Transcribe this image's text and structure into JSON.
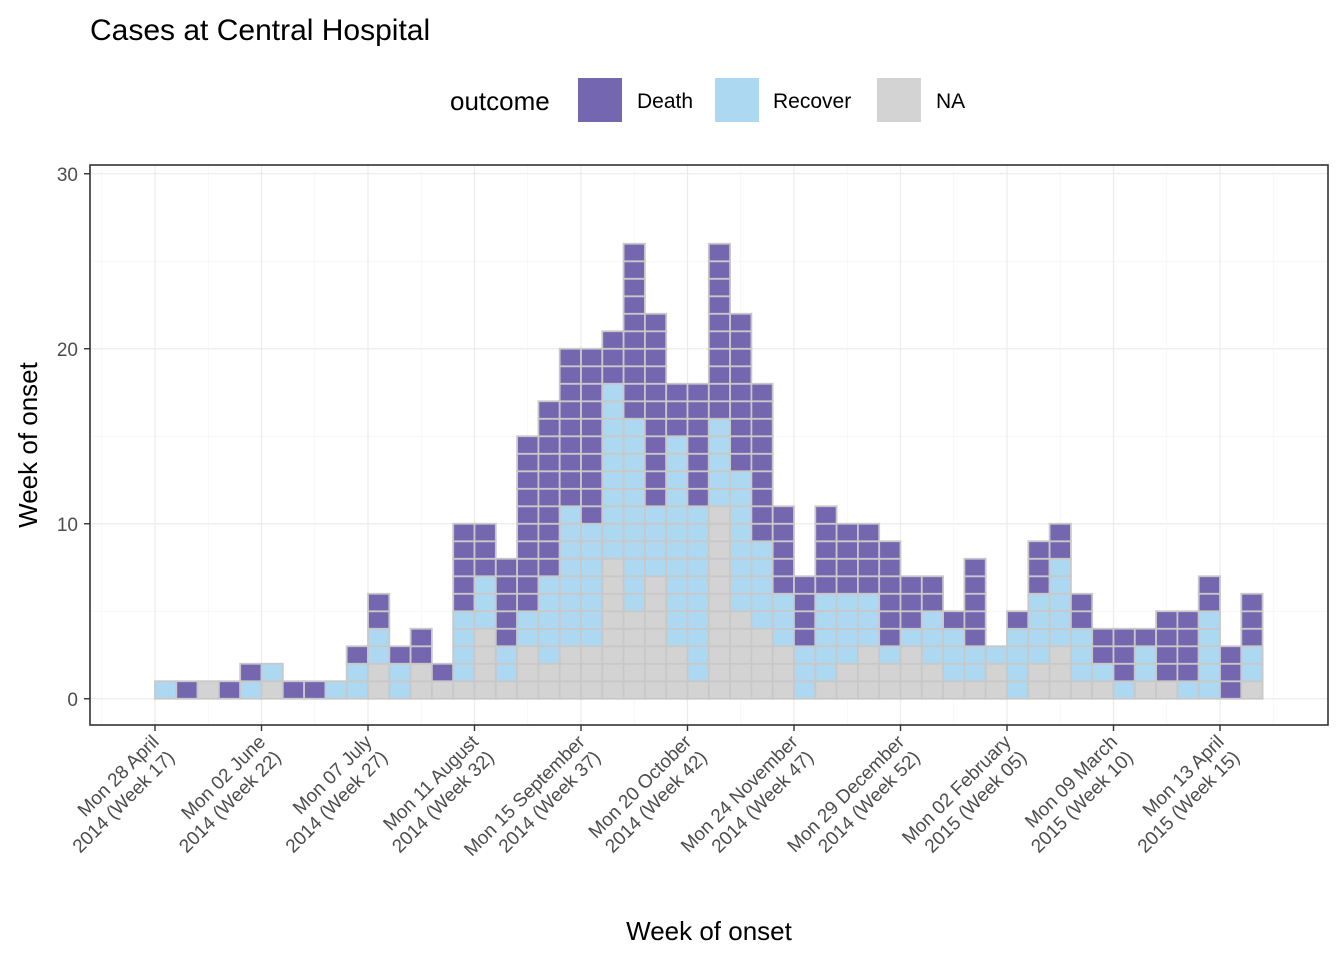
{
  "chart_data": {
    "type": "bar",
    "title": "Cases at Central Hospital",
    "xlabel": "Week of onset",
    "ylabel": "Week of onset",
    "ylim": [
      -1.5,
      30.5
    ],
    "yticks": [
      0,
      10,
      20,
      30
    ],
    "grid": true,
    "legend": {
      "title": "outcome",
      "position": "top"
    },
    "colors": {
      "Death": "#7566b0",
      "Recover": "#add8f2",
      "NA": "#d3d3d3",
      "cell_border": "#c8c8c8"
    },
    "x_axis": {
      "unit": "ISO week (Monday start)",
      "first_week": "2014-04-28",
      "ticks": [
        {
          "week": "2014-04-28",
          "line1": "Mon 28 April",
          "line2": "2014 (Week 17)"
        },
        {
          "week": "2014-06-02",
          "line1": "Mon 02 June",
          "line2": "2014 (Week 22)"
        },
        {
          "week": "2014-07-07",
          "line1": "Mon 07 July",
          "line2": "2014 (Week 27)"
        },
        {
          "week": "2014-08-11",
          "line1": "Mon 11 August",
          "line2": "2014 (Week 32)"
        },
        {
          "week": "2014-09-15",
          "line1": "Mon 15 September",
          "line2": "2014 (Week 37)"
        },
        {
          "week": "2014-10-20",
          "line1": "Mon 20 October",
          "line2": "2014 (Week 42)"
        },
        {
          "week": "2014-11-24",
          "line1": "Mon 24 November",
          "line2": "2014 (Week 47)"
        },
        {
          "week": "2014-12-29",
          "line1": "Mon 29 December",
          "line2": "2014 (Week 52)"
        },
        {
          "week": "2015-02-02",
          "line1": "Mon 02 February",
          "line2": "2015 (Week 05)"
        },
        {
          "week": "2015-03-09",
          "line1": "Mon 09 March",
          "line2": "2015 (Week 10)"
        },
        {
          "week": "2015-04-13",
          "line1": "Mon 13 April",
          "line2": "2015 (Week 15)"
        }
      ]
    },
    "stack_order": [
      "NA",
      "Recover",
      "Death"
    ],
    "series": [
      {
        "name": "NA",
        "x": [
          "2014-04-28",
          "2014-05-05",
          "2014-05-12",
          "2014-05-19",
          "2014-05-26",
          "2014-06-02",
          "2014-06-09",
          "2014-06-16",
          "2014-06-23",
          "2014-06-30",
          "2014-07-07",
          "2014-07-14",
          "2014-07-21",
          "2014-07-28",
          "2014-08-04",
          "2014-08-11",
          "2014-08-18",
          "2014-08-25",
          "2014-09-01",
          "2014-09-08",
          "2014-09-15",
          "2014-09-22",
          "2014-09-29",
          "2014-10-06",
          "2014-10-13",
          "2014-10-20",
          "2014-10-27",
          "2014-11-03",
          "2014-11-10",
          "2014-11-17",
          "2014-11-24",
          "2014-12-01",
          "2014-12-08",
          "2014-12-15",
          "2014-12-22",
          "2014-12-29",
          "2015-01-05",
          "2015-01-12",
          "2015-01-19",
          "2015-01-26",
          "2015-02-02",
          "2015-02-09",
          "2015-02-16",
          "2015-02-23",
          "2015-03-02",
          "2015-03-09",
          "2015-03-16",
          "2015-03-23",
          "2015-03-30",
          "2015-04-06",
          "2015-04-13",
          "2015-04-20"
        ],
        "values": [
          0,
          0,
          1,
          0,
          0,
          1,
          0,
          0,
          0,
          0,
          2,
          0,
          2,
          1,
          1,
          4,
          1,
          3,
          2,
          3,
          3,
          8,
          5,
          7,
          3,
          1,
          11,
          5,
          4,
          3,
          0,
          1,
          2,
          3,
          2,
          3,
          2,
          1,
          1,
          2,
          0,
          2,
          3,
          1,
          1,
          0,
          1,
          1,
          0,
          0,
          0,
          1
        ]
      },
      {
        "name": "Recover",
        "x": [
          "2014-04-28",
          "2014-05-05",
          "2014-05-12",
          "2014-05-19",
          "2014-05-26",
          "2014-06-02",
          "2014-06-09",
          "2014-06-16",
          "2014-06-23",
          "2014-06-30",
          "2014-07-07",
          "2014-07-14",
          "2014-07-21",
          "2014-07-28",
          "2014-08-04",
          "2014-08-11",
          "2014-08-18",
          "2014-08-25",
          "2014-09-01",
          "2014-09-08",
          "2014-09-15",
          "2014-09-22",
          "2014-09-29",
          "2014-10-06",
          "2014-10-13",
          "2014-10-20",
          "2014-10-27",
          "2014-11-03",
          "2014-11-10",
          "2014-11-17",
          "2014-11-24",
          "2014-12-01",
          "2014-12-08",
          "2014-12-15",
          "2014-12-22",
          "2014-12-29",
          "2015-01-05",
          "2015-01-12",
          "2015-01-19",
          "2015-01-26",
          "2015-02-02",
          "2015-02-09",
          "2015-02-16",
          "2015-02-23",
          "2015-03-02",
          "2015-03-09",
          "2015-03-16",
          "2015-03-23",
          "2015-03-30",
          "2015-04-06",
          "2015-04-13",
          "2015-04-20"
        ],
        "values": [
          1,
          0,
          0,
          0,
          1,
          1,
          0,
          0,
          1,
          2,
          2,
          2,
          0,
          0,
          4,
          3,
          2,
          2,
          5,
          8,
          7,
          10,
          11,
          4,
          12,
          10,
          5,
          8,
          5,
          3,
          3,
          5,
          4,
          3,
          1,
          1,
          3,
          3,
          2,
          1,
          4,
          4,
          5,
          3,
          1,
          1,
          2,
          0,
          1,
          5,
          0,
          2
        ]
      },
      {
        "name": "Death",
        "x": [
          "2014-04-28",
          "2014-05-05",
          "2014-05-12",
          "2014-05-19",
          "2014-05-26",
          "2014-06-02",
          "2014-06-09",
          "2014-06-16",
          "2014-06-23",
          "2014-06-30",
          "2014-07-07",
          "2014-07-14",
          "2014-07-21",
          "2014-07-28",
          "2014-08-04",
          "2014-08-11",
          "2014-08-18",
          "2014-08-25",
          "2014-09-01",
          "2014-09-08",
          "2014-09-15",
          "2014-09-22",
          "2014-09-29",
          "2014-10-06",
          "2014-10-13",
          "2014-10-20",
          "2014-10-27",
          "2014-11-03",
          "2014-11-10",
          "2014-11-17",
          "2014-11-24",
          "2014-12-01",
          "2014-12-08",
          "2014-12-15",
          "2014-12-22",
          "2014-12-29",
          "2015-01-05",
          "2015-01-12",
          "2015-01-19",
          "2015-01-26",
          "2015-02-02",
          "2015-02-09",
          "2015-02-16",
          "2015-02-23",
          "2015-03-02",
          "2015-03-09",
          "2015-03-16",
          "2015-03-23",
          "2015-03-30",
          "2015-04-06",
          "2015-04-13",
          "2015-04-20"
        ],
        "values": [
          0,
          1,
          0,
          1,
          1,
          0,
          1,
          1,
          0,
          1,
          2,
          1,
          2,
          1,
          5,
          3,
          5,
          10,
          10,
          9,
          10,
          3,
          10,
          11,
          3,
          7,
          10,
          9,
          9,
          5,
          4,
          5,
          4,
          4,
          6,
          3,
          2,
          1,
          5,
          0,
          1,
          3,
          2,
          2,
          2,
          3,
          1,
          4,
          4,
          2,
          3,
          3
        ]
      }
    ]
  }
}
